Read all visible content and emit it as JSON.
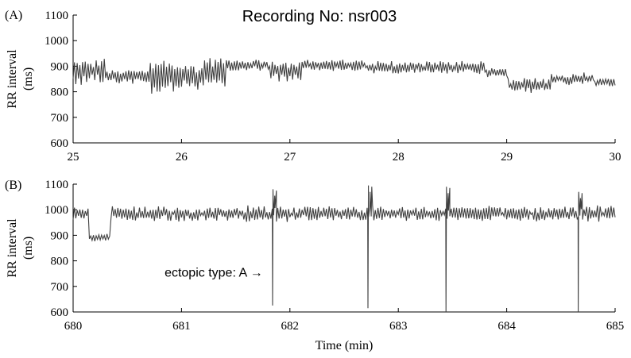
{
  "figure": {
    "title": "Recording No: nsr003"
  },
  "chart_data": [
    {
      "panel": "(A)",
      "type": "line",
      "xlabel": "",
      "ylabel": "RR interval\n(ms)",
      "xlim": [
        25,
        30
      ],
      "ylim": [
        600,
        1100
      ],
      "xticks": [
        25,
        26,
        27,
        28,
        29,
        30
      ],
      "yticks": [
        600,
        700,
        800,
        900,
        1000,
        1100
      ],
      "line_color": "#404040",
      "segments": [
        {
          "x0": 25.0,
          "x1": 25.3,
          "base": 880,
          "amp": 45,
          "noise": 20
        },
        {
          "x0": 25.3,
          "x1": 25.7,
          "base": 860,
          "amp": 25,
          "noise": 15
        },
        {
          "x0": 25.7,
          "x1": 26.2,
          "base": 860,
          "amp": 55,
          "noise": 25
        },
        {
          "x0": 26.2,
          "x1": 26.4,
          "base": 870,
          "amp": 55,
          "noise": 25
        },
        {
          "x0": 26.4,
          "x1": 26.8,
          "base": 905,
          "amp": 18,
          "noise": 12
        },
        {
          "x0": 26.8,
          "x1": 27.1,
          "base": 880,
          "amp": 35,
          "noise": 20
        },
        {
          "x0": 27.1,
          "x1": 27.7,
          "base": 905,
          "amp": 18,
          "noise": 15
        },
        {
          "x0": 27.7,
          "x1": 28.8,
          "base": 895,
          "amp": 20,
          "noise": 15
        },
        {
          "x0": 28.8,
          "x1": 29.0,
          "base": 875,
          "amp": 15,
          "noise": 10
        },
        {
          "x0": 29.0,
          "x1": 29.4,
          "base": 825,
          "amp": 25,
          "noise": 15
        },
        {
          "x0": 29.4,
          "x1": 29.8,
          "base": 850,
          "amp": 20,
          "noise": 15
        },
        {
          "x0": 29.8,
          "x1": 30.0,
          "base": 835,
          "amp": 15,
          "noise": 10
        }
      ],
      "dips": []
    },
    {
      "panel": "(B)",
      "type": "line",
      "xlabel": "Time (min)",
      "ylabel": "RR interval\n(ms)",
      "xlim": [
        680,
        685
      ],
      "ylim": [
        600,
        1100
      ],
      "xticks": [
        680,
        681,
        682,
        683,
        684,
        685
      ],
      "yticks": [
        600,
        700,
        800,
        900,
        1000,
        1100
      ],
      "line_color": "#404040",
      "segments": [
        {
          "x0": 680.0,
          "x1": 680.15,
          "base": 985,
          "amp": 25,
          "noise": 15
        },
        {
          "x0": 680.15,
          "x1": 680.35,
          "base": 890,
          "amp": 15,
          "noise": 10
        },
        {
          "x0": 680.35,
          "x1": 685.0,
          "base": 985,
          "amp": 25,
          "noise": 18
        }
      ],
      "dips": [
        {
          "x": 681.84,
          "min": 625,
          "peak": 1080
        },
        {
          "x": 682.72,
          "min": 615,
          "peak": 1095
        },
        {
          "x": 683.44,
          "min": 600,
          "peak": 1090
        },
        {
          "x": 684.66,
          "min": 600,
          "peak": 1070
        }
      ],
      "annotation": {
        "text": "ectopic type: A →",
        "x": 681.75,
        "y": 738
      }
    }
  ]
}
